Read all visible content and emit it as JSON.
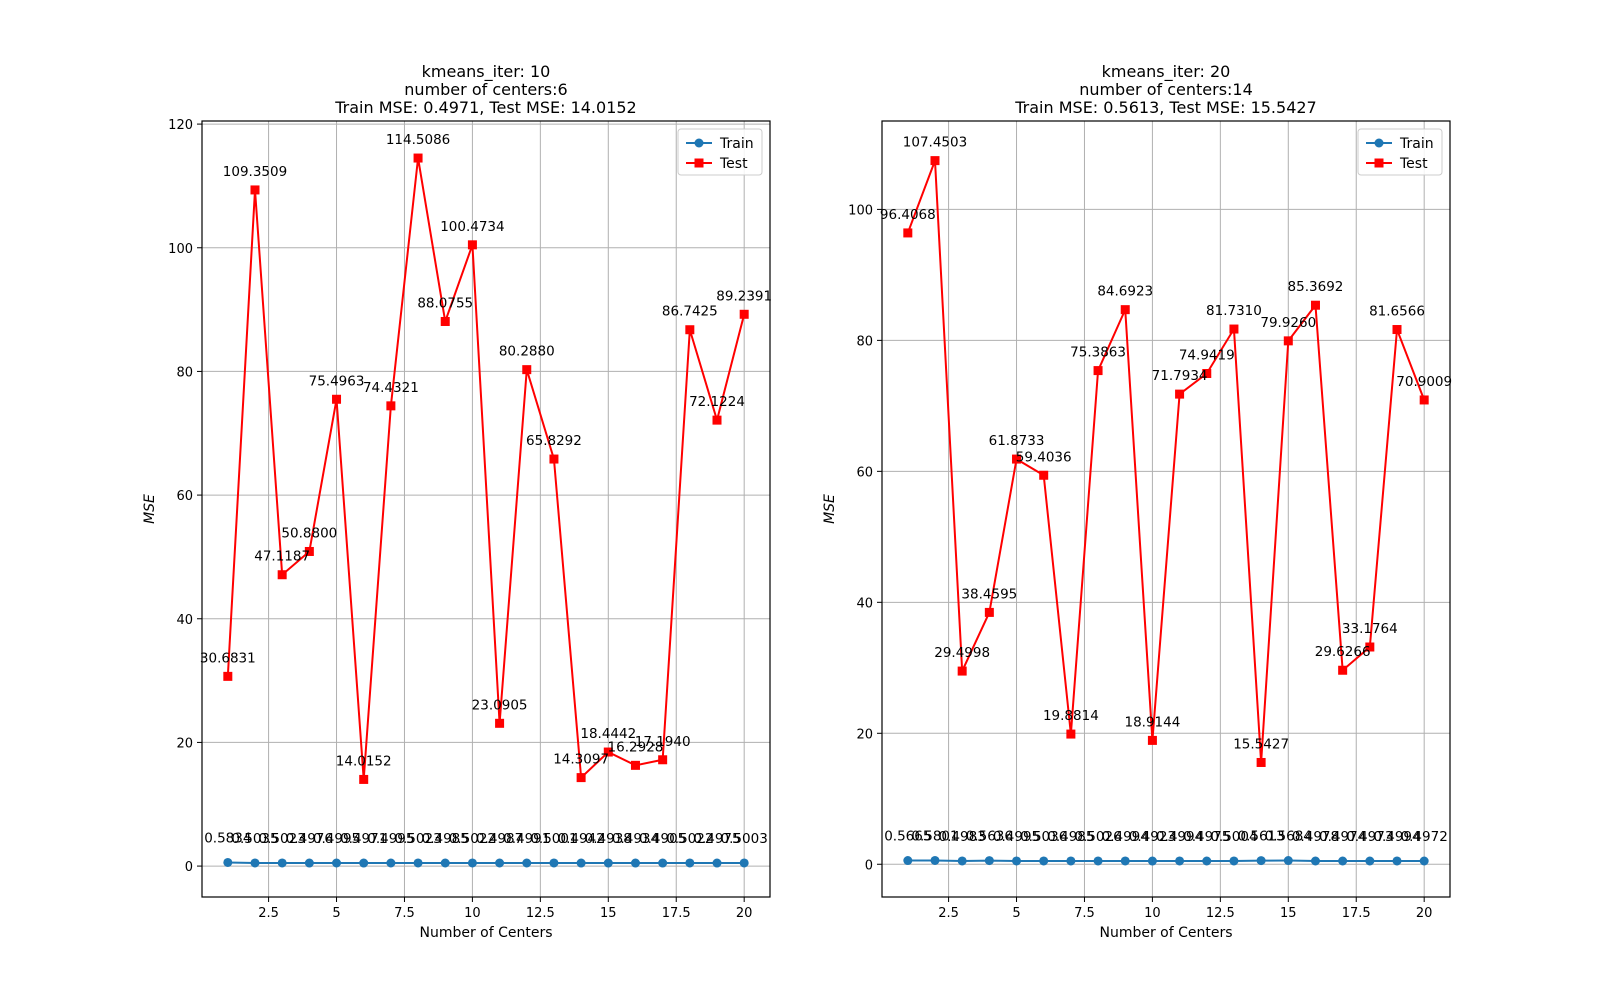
{
  "chart_data": [
    {
      "type": "line",
      "title_lines": [
        "kmeans_iter: 10",
        "number of centers:6",
        "Train MSE: 0.4971, Test MSE: 14.0152"
      ],
      "xlabel": "Number of Centers",
      "ylabel": "MSE",
      "xlim": [
        0.05,
        20.95
      ],
      "ylim": [
        -5.0,
        120.5
      ],
      "xticks": [
        2.5,
        5.0,
        7.5,
        10.0,
        12.5,
        15.0,
        17.5,
        20.0
      ],
      "yticks": [
        0,
        20,
        40,
        60,
        80,
        100,
        120
      ],
      "grid": true,
      "legend_position": "top-right",
      "x": [
        1,
        2,
        3,
        4,
        5,
        6,
        7,
        8,
        9,
        10,
        11,
        12,
        13,
        14,
        15,
        16,
        17,
        18,
        19,
        20
      ],
      "series": [
        {
          "name": "Train",
          "color": "#1f77b4",
          "marker": "circle",
          "values": [
            0.5834,
            0.5035,
            0.5023,
            0.4976,
            0.4995,
            0.4971,
            0.4995,
            0.5023,
            0.4985,
            0.5022,
            0.4987,
            0.4991,
            0.5001,
            0.4942,
            0.4938,
            0.4934,
            0.4905,
            0.5022,
            0.4975,
            0.5003
          ],
          "labels": [
            "0.5834",
            "0.5035",
            "0.5023",
            "0.4976",
            "0.4995",
            "0.4971",
            "0.4995",
            "0.5023",
            "0.4985",
            "0.5022",
            "0.4987",
            "0.4991",
            "0.5001",
            "0.4942",
            "0.4938",
            "0.4934",
            "0.4905",
            "0.5022",
            "0.4975",
            "0.5003"
          ]
        },
        {
          "name": "Test",
          "color": "#ff0000",
          "marker": "square",
          "values": [
            30.6831,
            109.3509,
            47.1187,
            50.88,
            75.4963,
            14.0152,
            74.4321,
            114.5086,
            88.0755,
            100.4734,
            23.0905,
            80.288,
            65.8292,
            14.3097,
            18.4442,
            16.2928,
            17.194,
            86.7425,
            72.1224,
            89.2391
          ],
          "labels": [
            "30.6831",
            "109.3509",
            "47.1187",
            "50.8800",
            "75.4963",
            "14.0152",
            "74.4321",
            "114.5086",
            "88.0755",
            "100.4734",
            "23.0905",
            "80.2880",
            "65.8292",
            "14.3097",
            "18.4442",
            "16.2928",
            "17.1940",
            "86.7425",
            "72.1224",
            "89.2391"
          ]
        }
      ]
    },
    {
      "type": "line",
      "title_lines": [
        "kmeans_iter: 20",
        "number of centers:14",
        "Train MSE: 0.5613, Test MSE: 15.5427"
      ],
      "xlabel": "Number of Centers",
      "ylabel": "MSE",
      "xlim": [
        0.05,
        20.95
      ],
      "ylim": [
        -5.0,
        113.5
      ],
      "xticks": [
        2.5,
        5.0,
        7.5,
        10.0,
        12.5,
        15.0,
        17.5,
        20.0
      ],
      "yticks": [
        0,
        20,
        40,
        60,
        80,
        100
      ],
      "grid": true,
      "legend_position": "top-right",
      "x": [
        1,
        2,
        3,
        4,
        5,
        6,
        7,
        8,
        9,
        10,
        11,
        12,
        13,
        14,
        15,
        16,
        17,
        18,
        19,
        20
      ],
      "series": [
        {
          "name": "Train",
          "color": "#1f77b4",
          "marker": "circle",
          "values": [
            0.5665,
            0.5801,
            0.4983,
            0.5636,
            0.4995,
            0.5036,
            0.4985,
            0.5026,
            0.4994,
            0.4923,
            0.4994,
            0.4975,
            0.5004,
            0.5613,
            0.5684,
            0.4978,
            0.4974,
            0.4973,
            0.4994,
            0.4972
          ],
          "labels": [
            "0.5665",
            "0.5801",
            "0.4983",
            "0.5636",
            "0.4995",
            "0.5036",
            "0.4985",
            "0.5026",
            "0.4994",
            "0.4923",
            "0.4994",
            "0.4975",
            "0.5004",
            "0.5613",
            "0.5684",
            "0.4978",
            "0.4974",
            "0.4973",
            "0.4994",
            "0.4972"
          ]
        },
        {
          "name": "Test",
          "color": "#ff0000",
          "marker": "square",
          "values": [
            96.4068,
            107.4503,
            29.4998,
            38.4595,
            61.8733,
            59.4036,
            19.8814,
            75.3863,
            84.6923,
            18.9144,
            71.7934,
            74.9419,
            81.731,
            15.5427,
            79.926,
            85.3692,
            29.6266,
            33.1764,
            81.6566,
            70.9009
          ],
          "labels": [
            "96.4068",
            "107.4503",
            "29.4998",
            "38.4595",
            "61.8733",
            "59.4036",
            "19.8814",
            "75.3863",
            "84.6923",
            "18.9144",
            "71.7934",
            "74.9419",
            "81.7310",
            "15.5427",
            "79.9260",
            "85.3692",
            "29.6266",
            "33.1764",
            "81.6566",
            "70.9009"
          ]
        }
      ]
    }
  ]
}
